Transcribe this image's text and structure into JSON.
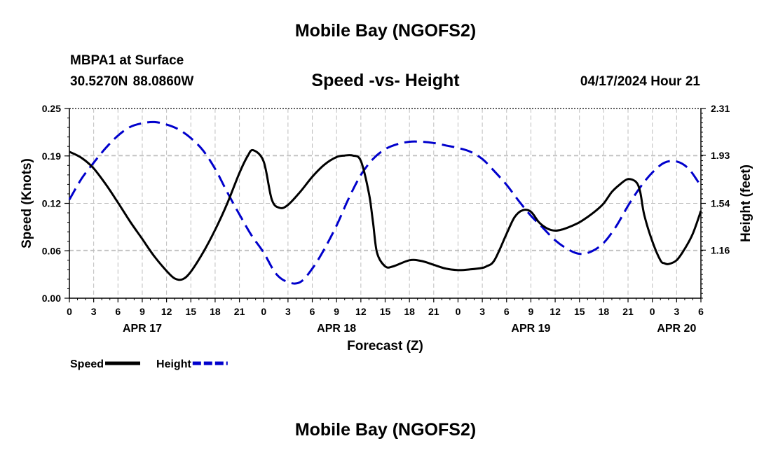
{
  "header": {
    "title": "Mobile Bay (NGOFS2)",
    "station": "MBPA1 at Surface",
    "coordinates": "30.5270N  88.0860W",
    "datetime": "04/17/2024 Hour 21",
    "bottom_title": "Mobile Bay (NGOFS2)"
  },
  "chart_data": {
    "type": "line",
    "title": "Speed -vs- Height",
    "xlabel": "Forecast (Z)",
    "ylabel_left": "Speed (Knots)",
    "ylabel_right": "Height (feet)",
    "x_range_hours": [
      0,
      78
    ],
    "ylim_left": [
      0,
      0.25
    ],
    "ylim_right": [
      0.77,
      2.31
    ],
    "yticks_left": [
      "0.00",
      "0.06",
      "0.12",
      "0.19",
      "0.25"
    ],
    "ytick_values_left": [
      0,
      0.0625,
      0.125,
      0.1875,
      0.25
    ],
    "yticks_right": [
      "1.16",
      "1.54",
      "1.93",
      "2.31"
    ],
    "ytick_values_right": [
      1.16,
      1.54,
      1.93,
      2.31
    ],
    "xticks": [
      "0",
      "3",
      "6",
      "9",
      "12",
      "15",
      "18",
      "21",
      "0",
      "3",
      "6",
      "9",
      "12",
      "15",
      "18",
      "21",
      "0",
      "3",
      "6",
      "9",
      "12",
      "15",
      "18",
      "21",
      "0",
      "3",
      "6"
    ],
    "date_labels": [
      {
        "label": "APR 17",
        "hour": 9
      },
      {
        "label": "APR 18",
        "hour": 33
      },
      {
        "label": "APR 19",
        "hour": 57
      },
      {
        "label": "APR 20",
        "hour": 75
      }
    ],
    "grid": true,
    "legend_position": "bottom-left",
    "series": [
      {
        "name": "Speed",
        "axis": "left",
        "color": "#000000",
        "style": "solid",
        "x": [
          0,
          1.5,
          3,
          4.5,
          6,
          7.5,
          9,
          10.5,
          12,
          13,
          14,
          15,
          16.5,
          18,
          19.5,
          21,
          22,
          22.7,
          24,
          25,
          26,
          27,
          28.5,
          30,
          31.5,
          33,
          34,
          35,
          36,
          37,
          37.5,
          38,
          39,
          40,
          42,
          43.5,
          45,
          46.5,
          48,
          49.5,
          51,
          51.5,
          52.5,
          54,
          55,
          56,
          57,
          58,
          59,
          60,
          61,
          62,
          63,
          64,
          65,
          66,
          67,
          68,
          69,
          70,
          70.5,
          71,
          72,
          73,
          73.5,
          74,
          75,
          76,
          77,
          78
        ],
        "values": [
          0.193,
          0.185,
          0.171,
          0.15,
          0.126,
          0.101,
          0.078,
          0.055,
          0.036,
          0.026,
          0.025,
          0.035,
          0.06,
          0.09,
          0.125,
          0.165,
          0.187,
          0.195,
          0.18,
          0.13,
          0.119,
          0.123,
          0.14,
          0.16,
          0.176,
          0.186,
          0.188,
          0.188,
          0.181,
          0.138,
          0.1,
          0.06,
          0.042,
          0.042,
          0.05,
          0.049,
          0.044,
          0.039,
          0.037,
          0.038,
          0.04,
          0.042,
          0.05,
          0.085,
          0.107,
          0.116,
          0.114,
          0.1,
          0.092,
          0.089,
          0.091,
          0.095,
          0.1,
          0.107,
          0.115,
          0.125,
          0.14,
          0.15,
          0.157,
          0.153,
          0.14,
          0.11,
          0.075,
          0.05,
          0.046,
          0.045,
          0.05,
          0.065,
          0.085,
          0.115
        ]
      },
      {
        "name": "Height",
        "axis": "right",
        "color": "#0000cc",
        "style": "dashed",
        "x": [
          0,
          1.5,
          3,
          4.5,
          6,
          7.5,
          9,
          10.5,
          12,
          13.5,
          15,
          16.5,
          18,
          19.5,
          21,
          22.5,
          24,
          25.5,
          27,
          28.5,
          30,
          31.5,
          33,
          34.5,
          36,
          37.5,
          39,
          40.5,
          42,
          43.5,
          45,
          46.5,
          48,
          49.5,
          51,
          52.5,
          54,
          55.5,
          57,
          58.5,
          60,
          61.5,
          63,
          64.5,
          66,
          67.5,
          69,
          70.5,
          72,
          73.5,
          75,
          76.5,
          78
        ],
        "values": [
          1.57,
          1.74,
          1.87,
          1.99,
          2.09,
          2.16,
          2.19,
          2.2,
          2.18,
          2.14,
          2.07,
          1.97,
          1.82,
          1.63,
          1.45,
          1.28,
          1.14,
          0.97,
          0.9,
          0.9,
          1.01,
          1.17,
          1.36,
          1.58,
          1.77,
          1.9,
          1.98,
          2.02,
          2.04,
          2.04,
          2.03,
          2.01,
          1.99,
          1.96,
          1.9,
          1.8,
          1.69,
          1.56,
          1.44,
          1.34,
          1.24,
          1.17,
          1.13,
          1.15,
          1.22,
          1.35,
          1.52,
          1.67,
          1.79,
          1.87,
          1.88,
          1.82,
          1.68
        ]
      }
    ],
    "legend": [
      {
        "label": "Speed",
        "color": "#000000",
        "style": "solid"
      },
      {
        "label": "Height",
        "color": "#0000cc",
        "style": "dashed"
      }
    ]
  }
}
